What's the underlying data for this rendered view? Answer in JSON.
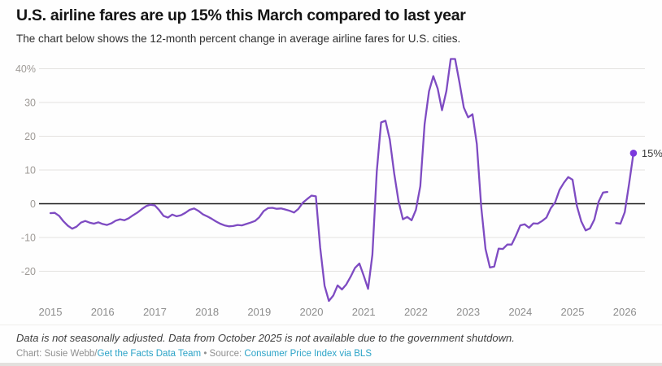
{
  "header": {
    "title": "U.S. airline fares are up 15% this March compared to last year",
    "subtitle": "The chart below shows the 12-month percent change in average airline fares for U.S. cities."
  },
  "chart_data": {
    "type": "line",
    "series_name": "12-month percent change in average airline fares, U.S. cities",
    "frequency": "monthly",
    "x_start": "2015-01",
    "x_end": "2026-03",
    "missing_months": [
      "2025-10"
    ],
    "x_tick_labels": [
      "2015",
      "2016",
      "2017",
      "2018",
      "2019",
      "2020",
      "2021",
      "2022",
      "2023",
      "2024",
      "2025",
      "2026"
    ],
    "y_ticks": [
      40,
      30,
      20,
      10,
      0,
      -10,
      -20
    ],
    "y_tick_labels": [
      "40%",
      "30",
      "20",
      "10",
      "0",
      "-10",
      "-20"
    ],
    "ylim": [
      -30,
      45
    ],
    "grid": "horizontal-only",
    "legend": "none",
    "values": [
      -2.8,
      -2.7,
      -3.6,
      -5.2,
      -6.5,
      -7.4,
      -6.8,
      -5.6,
      -5.1,
      -5.6,
      -5.9,
      -5.5,
      -6.0,
      -6.3,
      -5.8,
      -5.0,
      -4.6,
      -4.9,
      -4.3,
      -3.4,
      -2.6,
      -1.6,
      -0.7,
      -0.3,
      -0.5,
      -1.9,
      -3.6,
      -4.1,
      -3.2,
      -3.7,
      -3.4,
      -2.7,
      -1.8,
      -1.4,
      -2.1,
      -3.1,
      -3.7,
      -4.4,
      -5.2,
      -5.9,
      -6.4,
      -6.7,
      -6.6,
      -6.3,
      -6.4,
      -6.0,
      -5.6,
      -5.1,
      -4.0,
      -2.2,
      -1.3,
      -1.2,
      -1.5,
      -1.4,
      -1.7,
      -2.1,
      -2.6,
      -1.5,
      0.3,
      1.4,
      2.4,
      2.2,
      -13.0,
      -24.3,
      -28.8,
      -27.2,
      -24.2,
      -25.4,
      -23.9,
      -21.6,
      -19.0,
      -17.7,
      -21.3,
      -25.2,
      -15.1,
      9.6,
      24.1,
      24.6,
      19.0,
      9.0,
      0.8,
      -4.6,
      -3.9,
      -4.9,
      -1.8,
      5.2,
      23.6,
      33.3,
      37.8,
      34.1,
      27.7,
      33.4,
      42.9,
      42.9,
      36.0,
      28.5,
      25.6,
      26.5,
      17.7,
      -0.9,
      -13.4,
      -18.9,
      -18.6,
      -13.3,
      -13.4,
      -12.1,
      -12.1,
      -9.4,
      -6.4,
      -6.1,
      -7.1,
      -5.8,
      -5.9,
      -5.1,
      -4.1,
      -1.3,
      0.4,
      4.1,
      6.2,
      7.9,
      7.1,
      -0.7,
      -5.2,
      -7.9,
      -7.3,
      -4.7,
      0.6,
      3.3,
      3.5,
      null,
      -5.7,
      -5.9,
      -2.5,
      6.0,
      15.0
    ],
    "annotation": {
      "label": "15%",
      "value": 15.0,
      "month": "2026-03"
    },
    "line_color": "#7e4bc2",
    "dot_color": "#7b38dd",
    "grid_color": "#e4e2e0",
    "zero_line_color": "#1a1a1a"
  },
  "footer": {
    "note": "Data is not seasonally adjusted. Data from October 2025 is not available due to the government shutdown.",
    "credit_prefix": "Chart: Susie Webb/",
    "credit_link_team": "Get the Facts Data Team",
    "credit_separator": " • Source: ",
    "credit_link_source": "Consumer Price Index via BLS",
    "link_color": "#2ba3c7"
  }
}
